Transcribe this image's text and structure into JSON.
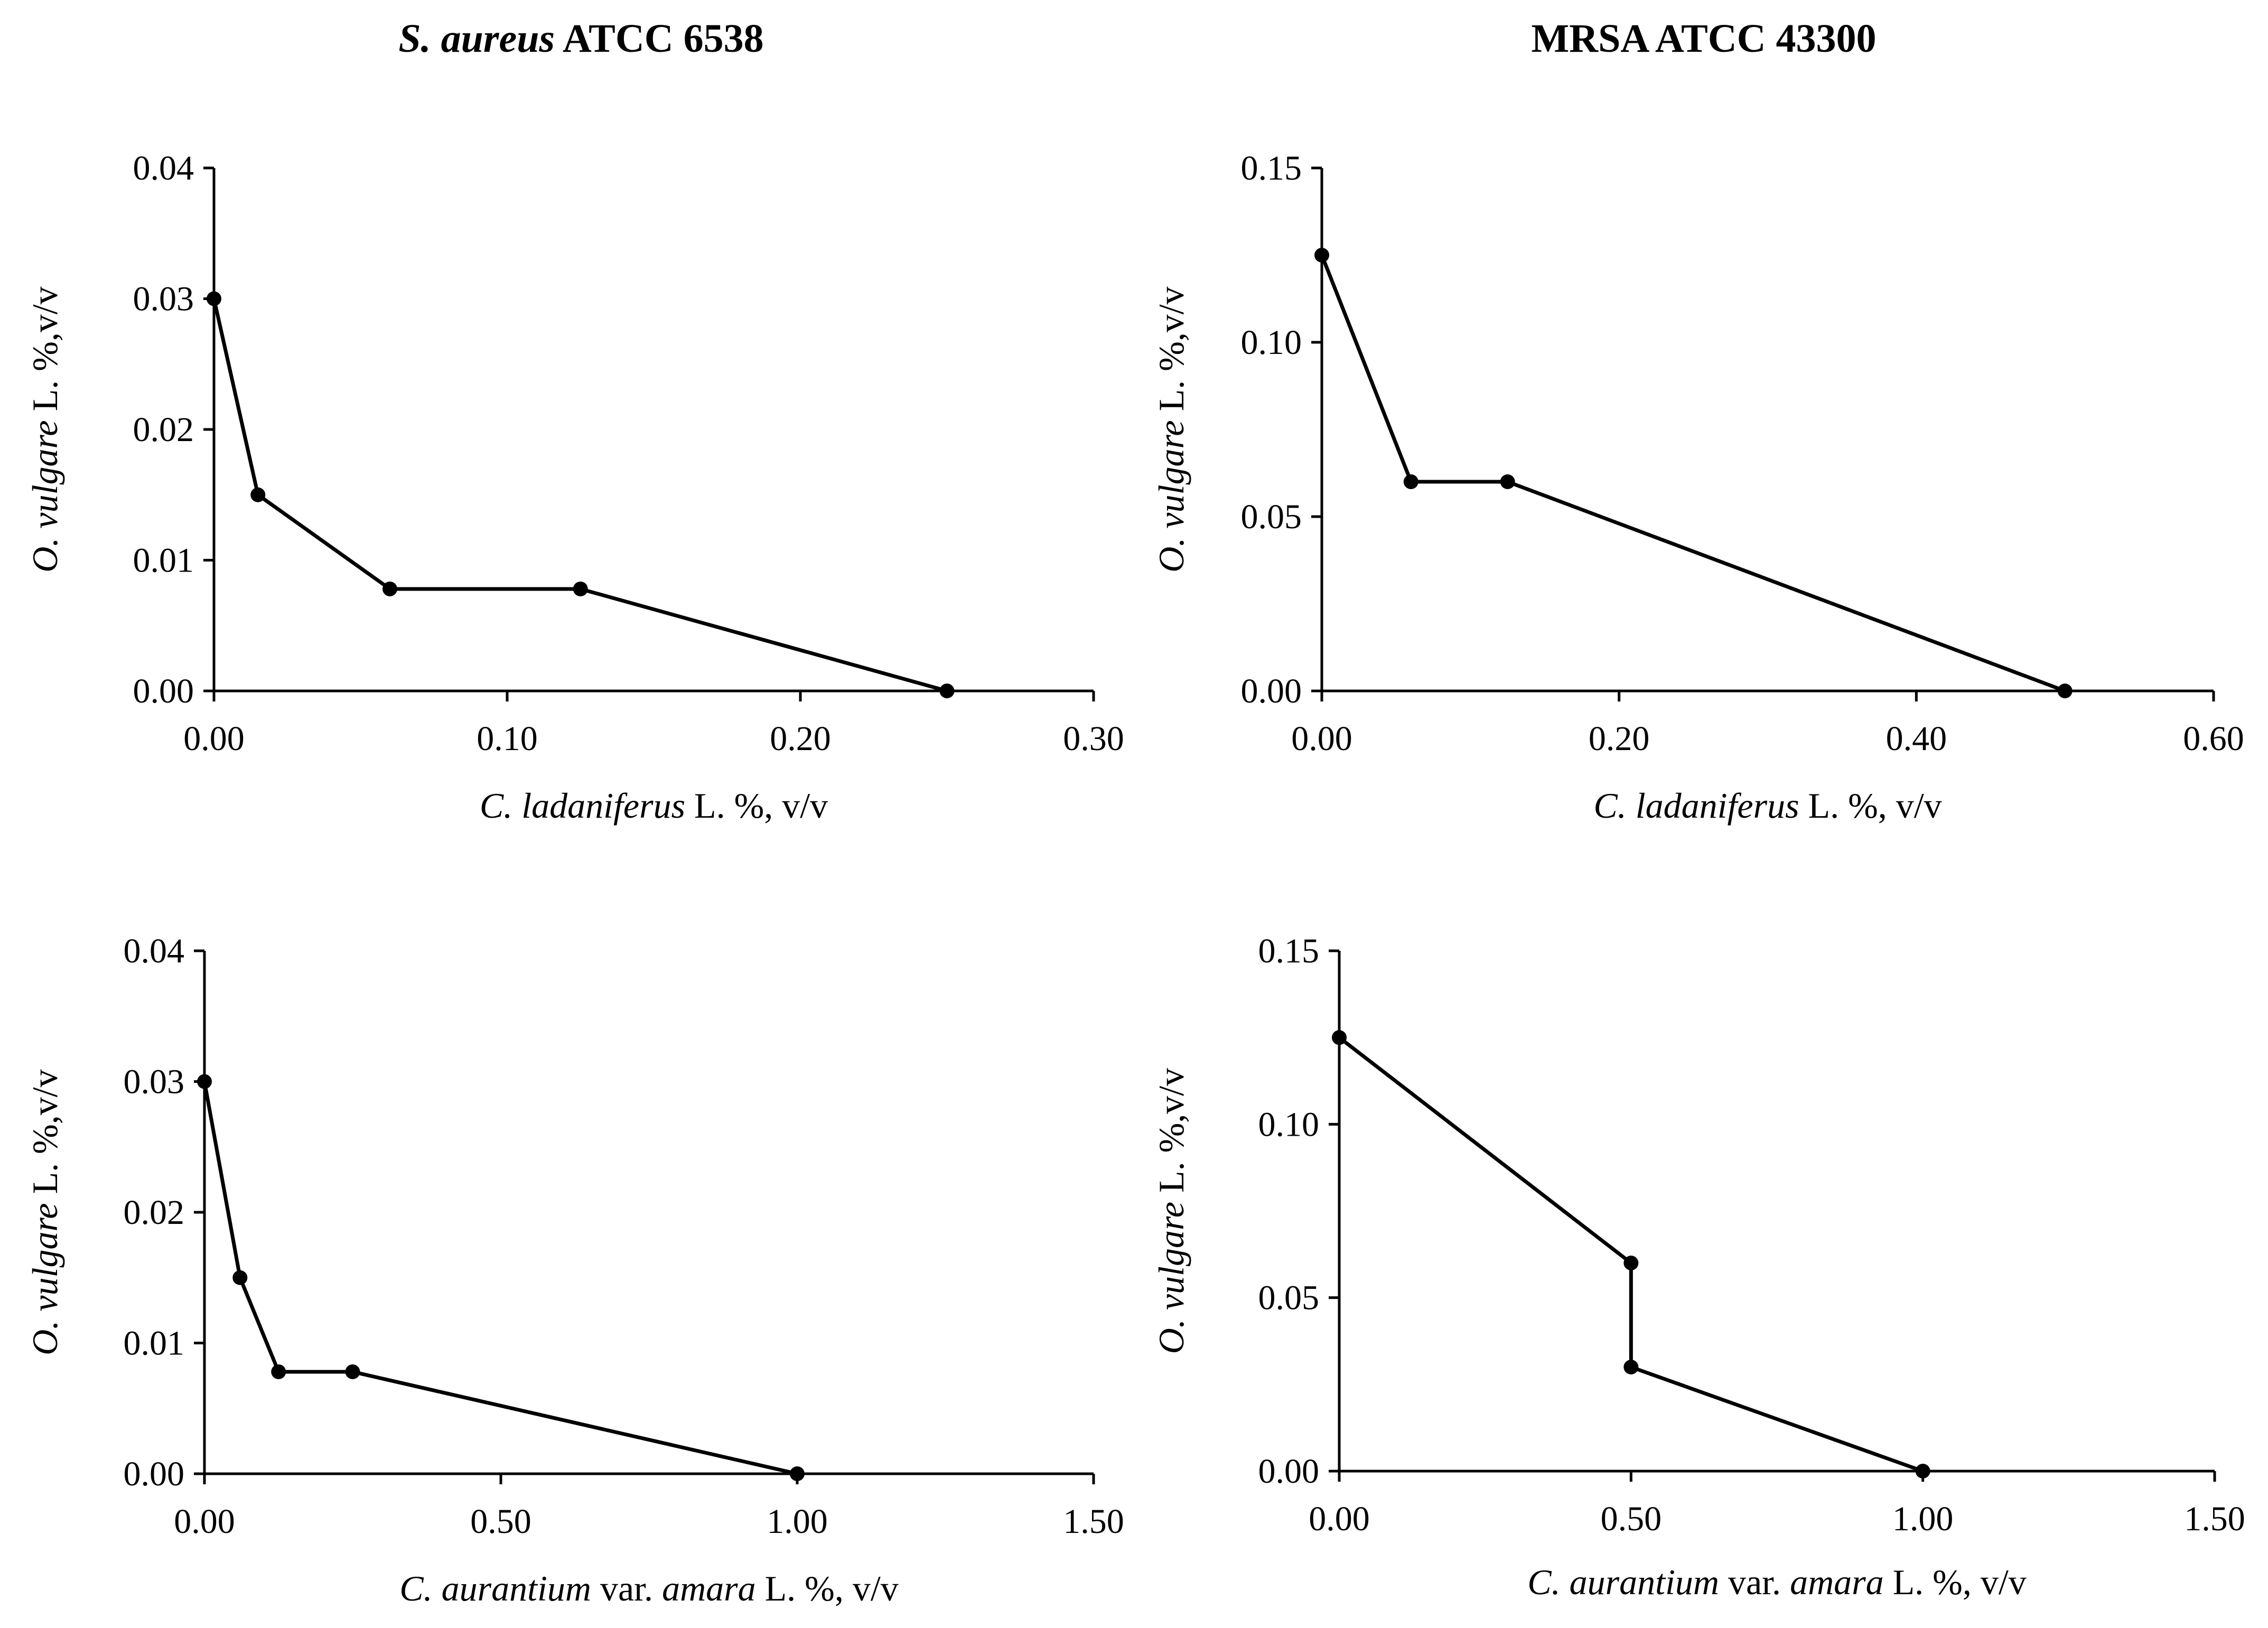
{
  "column_titles": [
    {
      "italic": "S. aureus",
      "normal": " ATCC 6538"
    },
    {
      "italic": "",
      "normal": "MRSA ATCC 43300"
    }
  ],
  "chart_data": [
    {
      "type": "line",
      "panel": "top-left",
      "title": "S. aureus ATCC 6538",
      "xlabel": "C. ladaniferus L. %, v/v",
      "xlabel_parts": [
        {
          "text": "C. ladaniferus",
          "italic": true
        },
        {
          "text": " L. %, v/v",
          "italic": false
        }
      ],
      "ylabel": "O. vulgare L. %,v/v",
      "ylabel_parts": [
        {
          "text": "O. vulgare",
          "italic": true
        },
        {
          "text": " L. %,v/v",
          "italic": false
        }
      ],
      "xlim": [
        0,
        0.3
      ],
      "ylim": [
        0,
        0.04
      ],
      "xticks": [
        0,
        0.1,
        0.2,
        0.3
      ],
      "xtick_labels": [
        "0.00",
        "0.10",
        "0.20",
        "0.30"
      ],
      "yticks": [
        0,
        0.01,
        0.02,
        0.03,
        0.04
      ],
      "ytick_labels": [
        "0.00",
        "0.01",
        "0.02",
        "0.03",
        "0.04"
      ],
      "grid": false,
      "x": [
        0,
        0.015,
        0.06,
        0.125,
        0.25
      ],
      "y": [
        0.03,
        0.015,
        0.0078,
        0.0078,
        0
      ]
    },
    {
      "type": "line",
      "panel": "top-right",
      "title": "MRSA ATCC 43300",
      "xlabel": "C. ladaniferus L. %, v/v",
      "xlabel_parts": [
        {
          "text": "C. ladaniferus",
          "italic": true
        },
        {
          "text": " L. %, v/v",
          "italic": false
        }
      ],
      "ylabel": "O. vulgare L. %,v/v",
      "ylabel_parts": [
        {
          "text": "O. vulgare",
          "italic": true
        },
        {
          "text": " L. %,v/v",
          "italic": false
        }
      ],
      "xlim": [
        0,
        0.6
      ],
      "ylim": [
        0,
        0.15
      ],
      "xticks": [
        0,
        0.2,
        0.4,
        0.6
      ],
      "xtick_labels": [
        "0.00",
        "0.20",
        "0.40",
        "0.60"
      ],
      "yticks": [
        0,
        0.05,
        0.1,
        0.15
      ],
      "ytick_labels": [
        "0.00",
        "0.05",
        "0.10",
        "0.15"
      ],
      "grid": false,
      "x": [
        0,
        0.06,
        0.125,
        0.5
      ],
      "y": [
        0.125,
        0.06,
        0.06,
        0
      ]
    },
    {
      "type": "line",
      "panel": "bottom-left",
      "title": "S. aureus ATCC 6538",
      "xlabel": "C. aurantium var. amara L. %, v/v",
      "xlabel_parts": [
        {
          "text": "C. aurantium",
          "italic": true
        },
        {
          "text": " var. ",
          "italic": false
        },
        {
          "text": "amara",
          "italic": true
        },
        {
          "text": " L. %, v/v",
          "italic": false
        }
      ],
      "ylabel": "O. vulgare L. %,v/v",
      "ylabel_parts": [
        {
          "text": "O. vulgare",
          "italic": true
        },
        {
          "text": " L. %,v/v",
          "italic": false
        }
      ],
      "xlim": [
        0,
        1.5
      ],
      "ylim": [
        0,
        0.04
      ],
      "xticks": [
        0,
        0.5,
        1.0,
        1.5
      ],
      "xtick_labels": [
        "0.00",
        "0.50",
        "1.00",
        "1.50"
      ],
      "yticks": [
        0,
        0.01,
        0.02,
        0.03,
        0.04
      ],
      "ytick_labels": [
        "0.00",
        "0.01",
        "0.02",
        "0.03",
        "0.04"
      ],
      "grid": false,
      "x": [
        0,
        0.06,
        0.125,
        0.25,
        1.0
      ],
      "y": [
        0.03,
        0.015,
        0.0078,
        0.0078,
        0
      ]
    },
    {
      "type": "line",
      "panel": "bottom-right",
      "title": "MRSA ATCC 43300",
      "xlabel": "C. aurantium var. amara L. %, v/v",
      "xlabel_parts": [
        {
          "text": "C. aurantium",
          "italic": true
        },
        {
          "text": " var. ",
          "italic": false
        },
        {
          "text": "amara",
          "italic": true
        },
        {
          "text": " L. %, v/v",
          "italic": false
        }
      ],
      "ylabel": "O. vulgare L. %,v/v",
      "ylabel_parts": [
        {
          "text": "O. vulgare",
          "italic": true
        },
        {
          "text": " L. %,v/v",
          "italic": false
        }
      ],
      "xlim": [
        0,
        1.5
      ],
      "ylim": [
        0,
        0.15
      ],
      "xticks": [
        0,
        0.5,
        1.0,
        1.5
      ],
      "xtick_labels": [
        "0.00",
        "0.50",
        "1.00",
        "1.50"
      ],
      "yticks": [
        0,
        0.05,
        0.1,
        0.15
      ],
      "ytick_labels": [
        "0.00",
        "0.05",
        "0.10",
        "0.15"
      ],
      "grid": false,
      "x": [
        0,
        0.5,
        0.5,
        1.0
      ],
      "y": [
        0.125,
        0.06,
        0.03,
        0
      ]
    }
  ]
}
